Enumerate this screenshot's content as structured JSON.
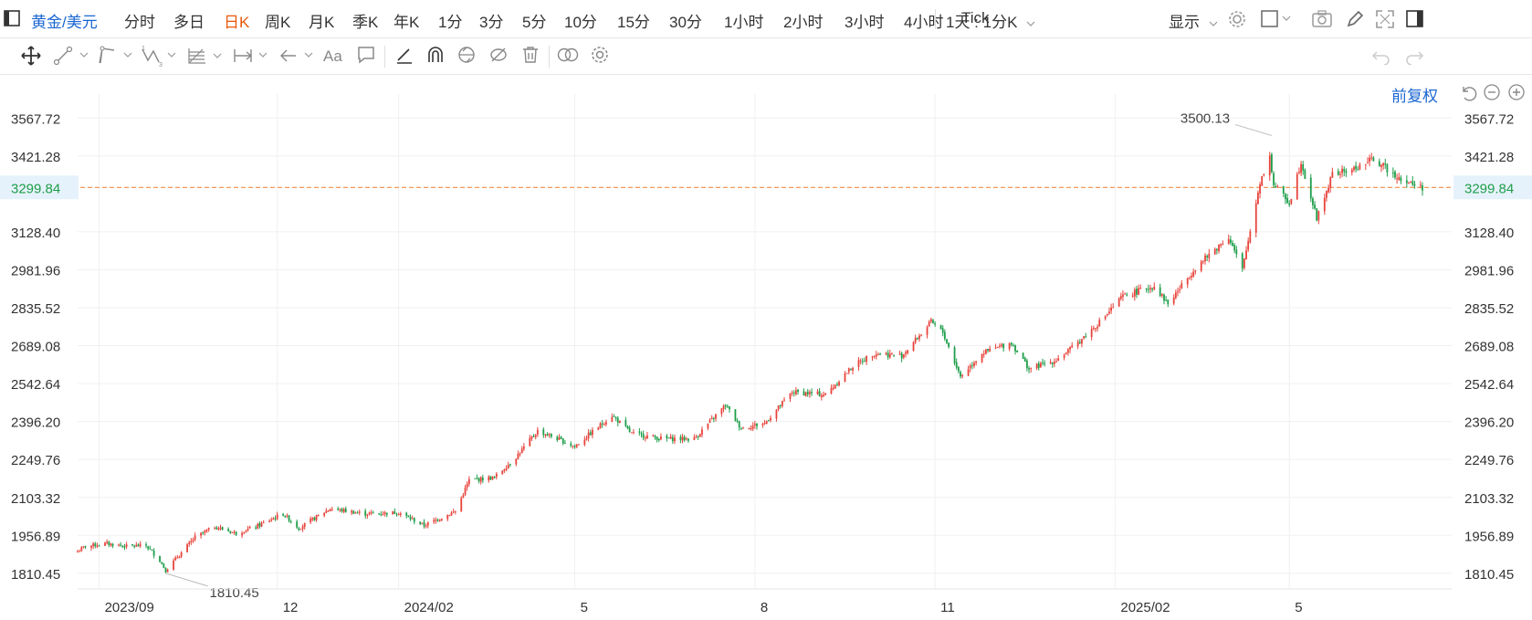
{
  "toolbar": {
    "symbol": "黄金/美元",
    "periods": [
      "分时",
      "多日",
      "日K",
      "周K",
      "月K",
      "季K",
      "年K",
      "1分",
      "3分",
      "5分",
      "10分",
      "15分",
      "30分",
      "1小时",
      "2小时",
      "3小时",
      "4小时",
      "Tick"
    ],
    "active_period": "日K",
    "period_setting": "1天 : 1分K",
    "display_label": "显示"
  },
  "drawing_tools": [
    "move-icon",
    "trend-line-icon",
    "channel-icon",
    "wave-icon",
    "fibonacci-icon",
    "measure-icon",
    "arrow-icon",
    "text-icon",
    "note-icon",
    "pen-icon",
    "magnet-icon",
    "lock-icon",
    "hide-icon",
    "trash-icon",
    "compare-icon",
    "settings-icon"
  ],
  "adjust_label": "前复权",
  "colors": {
    "up": "#e8433b",
    "down": "#1e9e4a",
    "accent": "#1a66d2",
    "last_line": "#f07f2c",
    "active": "#e8590c"
  },
  "chart_data": {
    "type": "candlestick",
    "instrument": "黄金/美元",
    "y_ticks": [
      1810.45,
      1956.89,
      2103.32,
      2249.76,
      2396.2,
      2542.64,
      2689.08,
      2835.52,
      2981.96,
      3128.4,
      3421.28,
      3567.72
    ],
    "y_tick_labels": [
      "1810.45",
      "1956.89",
      "2103.32",
      "2249.76",
      "2396.20",
      "2542.64",
      "2689.08",
      "2835.52",
      "2981.96",
      "3128.40",
      "3421.28",
      "3567.72"
    ],
    "ylim": [
      1750,
      3625
    ],
    "x_labels": [
      "2023/09",
      "12",
      "2024/02",
      "5",
      "8",
      "11",
      "2025/02",
      "5"
    ],
    "x_label_dates": [
      "2023-09-01",
      "2023-12-01",
      "2024-02-01",
      "2024-05-01",
      "2024-08-01",
      "2024-11-01",
      "2025-02-01",
      "2025-05-01"
    ],
    "last_price": 3299.84,
    "last_price_label": "3299.84",
    "annotations": [
      {
        "date": "2023-10-05",
        "value": 1810.45,
        "label": "1810.45"
      },
      {
        "date": "2025-04-22",
        "value": 3500.13,
        "label": "3500.13"
      }
    ],
    "date_start": "2023-08-21",
    "date_end": "2025-07-08",
    "close_anchors": [
      [
        "2023-08-21",
        1895
      ],
      [
        "2023-08-25",
        1915
      ],
      [
        "2023-09-05",
        1925
      ],
      [
        "2023-09-15",
        1915
      ],
      [
        "2023-09-25",
        1918
      ],
      [
        "2023-10-02",
        1860
      ],
      [
        "2023-10-05",
        1822
      ],
      [
        "2023-10-20",
        1950
      ],
      [
        "2023-10-30",
        1990
      ],
      [
        "2023-11-10",
        1965
      ],
      [
        "2023-11-20",
        1990
      ],
      [
        "2023-12-01",
        2030
      ],
      [
        "2023-12-04",
        2040
      ],
      [
        "2023-12-12",
        1985
      ],
      [
        "2023-12-28",
        2060
      ],
      [
        "2024-01-15",
        2040
      ],
      [
        "2024-02-01",
        2045
      ],
      [
        "2024-02-14",
        1995
      ],
      [
        "2024-03-01",
        2050
      ],
      [
        "2024-03-08",
        2170
      ],
      [
        "2024-03-21",
        2180
      ],
      [
        "2024-04-01",
        2260
      ],
      [
        "2024-04-12",
        2360
      ],
      [
        "2024-04-22",
        2330
      ],
      [
        "2024-05-01",
        2300
      ],
      [
        "2024-05-20",
        2420
      ],
      [
        "2024-05-30",
        2350
      ],
      [
        "2024-06-15",
        2330
      ],
      [
        "2024-07-01",
        2330
      ],
      [
        "2024-07-17",
        2460
      ],
      [
        "2024-07-25",
        2370
      ],
      [
        "2024-08-06",
        2390
      ],
      [
        "2024-08-20",
        2510
      ],
      [
        "2024-09-06",
        2500
      ],
      [
        "2024-09-20",
        2610
      ],
      [
        "2024-10-01",
        2660
      ],
      [
        "2024-10-15",
        2650
      ],
      [
        "2024-10-30",
        2780
      ],
      [
        "2024-11-05",
        2740
      ],
      [
        "2024-11-14",
        2570
      ],
      [
        "2024-11-25",
        2660
      ],
      [
        "2024-12-10",
        2700
      ],
      [
        "2024-12-19",
        2600
      ],
      [
        "2025-01-01",
        2630
      ],
      [
        "2025-01-10",
        2680
      ],
      [
        "2025-01-24",
        2780
      ],
      [
        "2025-02-05",
        2880
      ],
      [
        "2025-02-21",
        2920
      ],
      [
        "2025-02-28",
        2850
      ],
      [
        "2025-03-14",
        2990
      ],
      [
        "2025-03-31",
        3110
      ],
      [
        "2025-04-07",
        2980
      ],
      [
        "2025-04-16",
        3320
      ],
      [
        "2025-04-21",
        3420
      ],
      [
        "2025-04-23",
        3310
      ],
      [
        "2025-05-01",
        3240
      ],
      [
        "2025-05-07",
        3400
      ],
      [
        "2025-05-15",
        3180
      ],
      [
        "2025-05-23",
        3350
      ],
      [
        "2025-06-03",
        3370
      ],
      [
        "2025-06-13",
        3410
      ],
      [
        "2025-06-20",
        3370
      ],
      [
        "2025-06-30",
        3320
      ],
      [
        "2025-07-08",
        3300
      ]
    ]
  }
}
